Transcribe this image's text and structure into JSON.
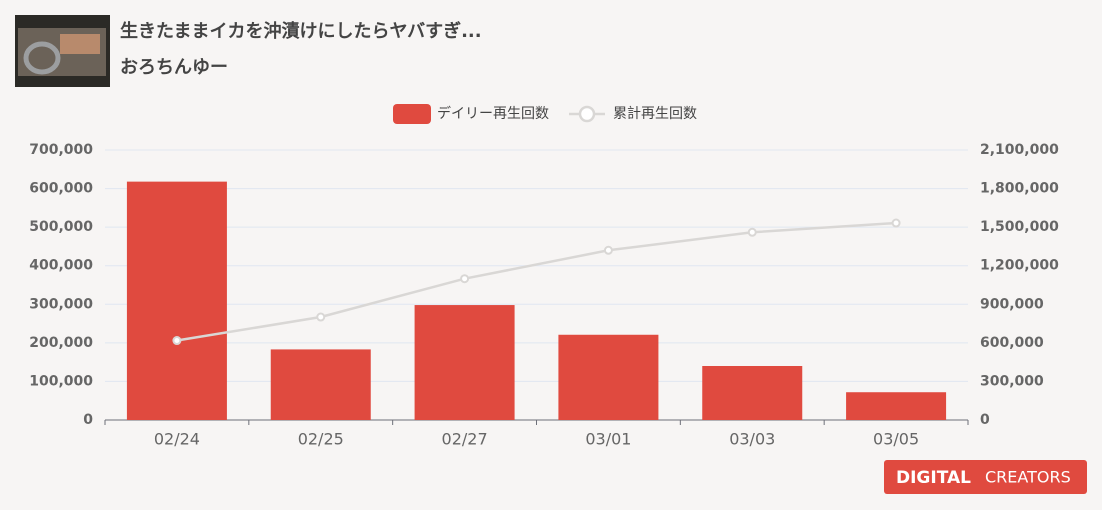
{
  "header": {
    "title": "生きたままイカを沖漬けにしたらヤバすぎ...",
    "channel": "おろちんゆー"
  },
  "chart_data": {
    "type": "bar",
    "categories": [
      "02/24",
      "02/25",
      "02/27",
      "03/01",
      "03/03",
      "03/05"
    ],
    "series": [
      {
        "name": "デイリー再生回数",
        "type": "bar",
        "color": "#e04a3f",
        "values": [
          618000,
          183000,
          298000,
          221000,
          140000,
          72000
        ]
      },
      {
        "name": "累計再生回数",
        "type": "line",
        "axis": "y2",
        "color": "#d9d7d5",
        "values": [
          618000,
          801000,
          1099000,
          1320000,
          1460000,
          1532000
        ]
      }
    ],
    "ylim": [
      0,
      700000
    ],
    "yticks": [
      0,
      {
        "value": 100000,
        "label": "100,000"
      },
      {
        "value": 200000,
        "label": "200,000"
      },
      {
        "value": 300000,
        "label": "300,000"
      },
      {
        "value": 400000,
        "label": "400,000"
      },
      {
        "value": 500000,
        "label": "500,000"
      },
      {
        "value": 600000,
        "label": "600,000"
      },
      {
        "value": 700000,
        "label": "700,000"
      }
    ],
    "y2lim": [
      0,
      2100000
    ],
    "y2ticks": [
      0,
      {
        "value": 300000,
        "label": "300,000"
      },
      {
        "value": 600000,
        "label": "600,000"
      },
      {
        "value": 900000,
        "label": "900,000"
      },
      {
        "value": 1200000,
        "label": "1,200,000"
      },
      {
        "value": 1500000,
        "label": "1,500,000"
      },
      {
        "value": 1800000,
        "label": "1,800,000"
      },
      {
        "value": 2100000,
        "label": "2,100,000"
      }
    ],
    "grid": true,
    "legend": "top"
  },
  "logo": {
    "brand": "DIGITAL",
    "suffix": "CREATORS"
  }
}
